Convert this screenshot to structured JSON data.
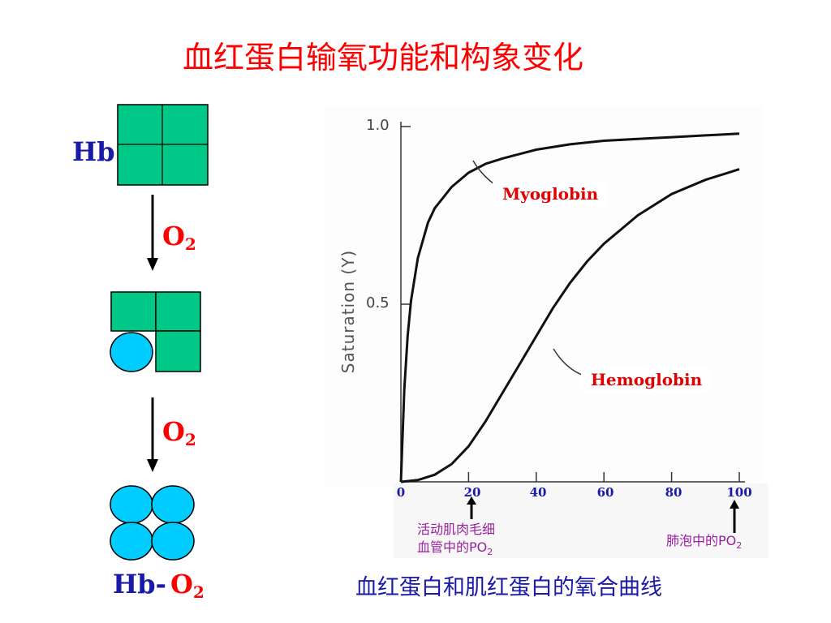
{
  "title": "血红蛋白输氧功能和构象变化",
  "left": {
    "hb_label": "Hb",
    "o2_text": "O",
    "o2_sub": "2",
    "final_prefix": "Hb-",
    "final_o2": "O",
    "final_o2_sub": "2"
  },
  "chart_data": {
    "type": "line",
    "ylabel": "Saturation (Y)",
    "yticks": [
      "1.0",
      "0.5"
    ],
    "xticks": [
      "0",
      "20",
      "40",
      "60",
      "80",
      "100"
    ],
    "xlim": [
      0,
      100
    ],
    "ylim": [
      0,
      1
    ],
    "series": [
      {
        "name": "Myoglobin",
        "x": [
          0,
          1,
          2,
          3,
          5,
          8,
          10,
          15,
          20,
          25,
          30,
          40,
          50,
          60,
          70,
          80,
          90,
          100
        ],
        "y": [
          0,
          0.26,
          0.41,
          0.51,
          0.63,
          0.73,
          0.77,
          0.83,
          0.87,
          0.895,
          0.91,
          0.935,
          0.95,
          0.96,
          0.965,
          0.97,
          0.975,
          0.98
        ]
      },
      {
        "name": "Hemoglobin",
        "x": [
          0,
          5,
          10,
          15,
          20,
          25,
          30,
          35,
          40,
          45,
          50,
          55,
          60,
          70,
          80,
          90,
          100
        ],
        "y": [
          0,
          0.005,
          0.02,
          0.05,
          0.1,
          0.17,
          0.25,
          0.33,
          0.41,
          0.49,
          0.56,
          0.62,
          0.67,
          0.75,
          0.81,
          0.85,
          0.88
        ]
      }
    ]
  },
  "notes": {
    "muscle_line1": "活动肌肉毛细",
    "muscle_line2": "血管中的PO",
    "muscle_sub": "2",
    "lung": "肺泡中的PO",
    "lung_sub": "2"
  },
  "caption": "血红蛋白和肌红蛋白的氧合曲线",
  "colors": {
    "square": "#00c887",
    "circle": "#00ccff",
    "title": "#ff0000",
    "navy": "#1a1aa8",
    "note": "#9a1fa0"
  }
}
